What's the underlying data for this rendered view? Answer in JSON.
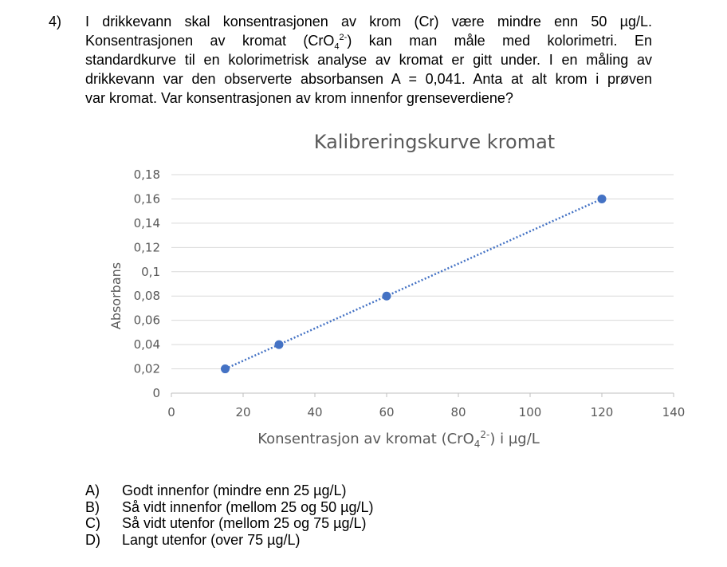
{
  "question": {
    "number": "4)",
    "lines": [
      {
        "parts": [
          {
            "t": "I drikkevann skal konsentrasjonen av krom (Cr) være mindre enn 50 µg/L."
          }
        ]
      },
      {
        "parts": [
          {
            "t": "Konsentrasjonen av kromat (CrO"
          },
          {
            "t": "4",
            "sub": true
          },
          {
            "t": "2-",
            "sup": true
          },
          {
            "t": ") kan man måle med kolorimetri. En"
          }
        ]
      },
      {
        "parts": [
          {
            "t": "standardkurve til en kolorimetrisk analyse av kromat er gitt under. I en måling av"
          }
        ]
      },
      {
        "parts": [
          {
            "t": "drikkevann var den observerte absorbansen A = 0,041. Anta at alt krom i prøven"
          }
        ]
      },
      {
        "parts": [
          {
            "t": "var kromat. Var konsentrasjonen av krom innenfor grenseverdiene?"
          }
        ]
      }
    ]
  },
  "chart_data": {
    "type": "scatter",
    "title": "Kalibreringskurve kromat",
    "xlabel": "Konsentrasjon av kromat (CrO",
    "xlabel_sub": "4",
    "xlabel_sup": "2-",
    "xlabel_tail": ") i µg/L",
    "ylabel": "Absorbans",
    "xlim": [
      0,
      140
    ],
    "ylim": [
      0,
      0.18
    ],
    "x_ticks": [
      "0",
      "20",
      "40",
      "60",
      "80",
      "100",
      "120",
      "140"
    ],
    "y_ticks": [
      "0",
      "0,02",
      "0,04",
      "0,06",
      "0,08",
      "0,1",
      "0,12",
      "0,14",
      "0,16",
      "0,18"
    ],
    "grid": true,
    "legend": "none",
    "trendline": "linear, dotted",
    "points": [
      {
        "x": 15,
        "y": 0.02
      },
      {
        "x": 30,
        "y": 0.04
      },
      {
        "x": 60,
        "y": 0.08
      },
      {
        "x": 120,
        "y": 0.16
      }
    ],
    "colors": {
      "series": "#4472c4",
      "grid": "#d9d9d9",
      "axis": "#bfbfbf",
      "text": "#595959"
    }
  },
  "answers": [
    {
      "letter": "A)",
      "text": "Godt innenfor (mindre enn 25 µg/L)"
    },
    {
      "letter": "B)",
      "text": "Så vidt innenfor (mellom 25 og 50 µg/L)"
    },
    {
      "letter": "C)",
      "text": "Så vidt utenfor (mellom 25 og 75 µg/L)"
    },
    {
      "letter": "D)",
      "text": "Langt utenfor (over 75 µg/L)"
    }
  ]
}
